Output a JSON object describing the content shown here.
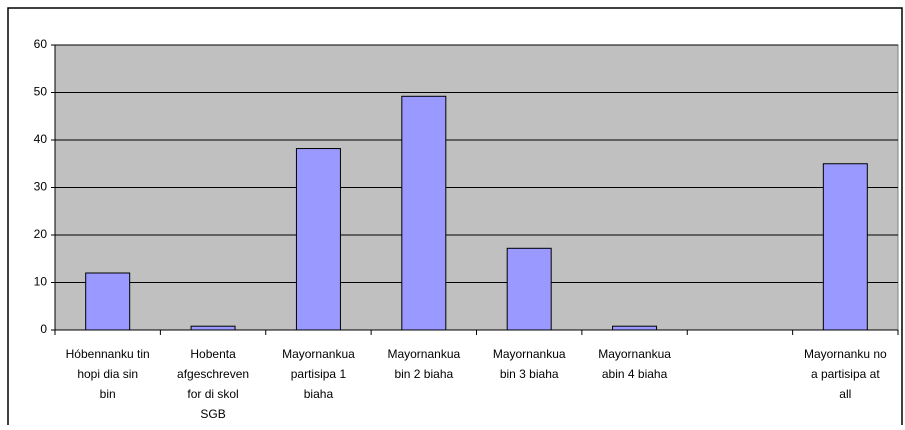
{
  "chart_data": {
    "type": "bar",
    "categories": [
      "Hóbennanku tin hopi dia sin bin",
      "Hobenta afgeschreven for di skol SGB",
      "Mayornankua partisipa 1 biaha",
      "Mayornankua bin 2 biaha",
      "Mayornankua bin 3 biaha",
      "Mayornankua abin 4 biaha",
      null,
      "Mayornanku no a partisipa at all"
    ],
    "values": [
      12,
      0.8,
      38.2,
      49.2,
      17.2,
      0.8,
      null,
      35
    ],
    "color": "#9999ff",
    "plot_background": "#c0c0c0",
    "ylim": [
      0,
      60
    ],
    "yticks": [
      0,
      10,
      20,
      30,
      40,
      50,
      60
    ],
    "grid": true
  }
}
